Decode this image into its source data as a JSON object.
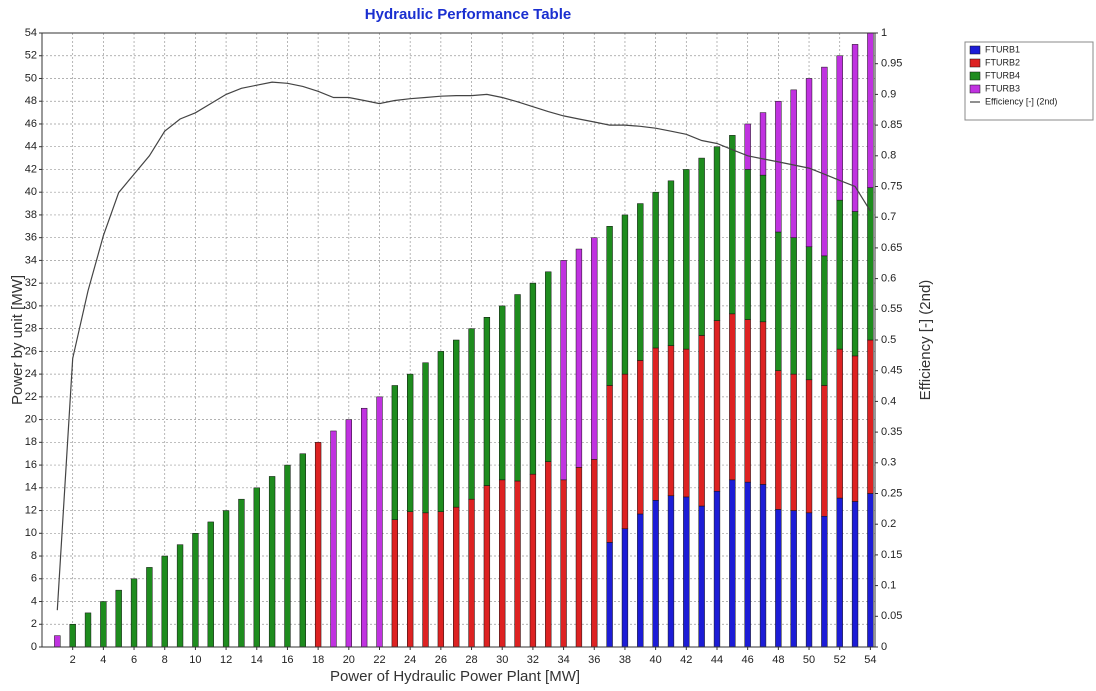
{
  "chart_data": {
    "type": "bar",
    "stacked": true,
    "title": "Hydraulic Performance Table",
    "xlabel": "Power of Hydraulic Power Plant [MW]",
    "ylabel": "Power by unit [MW]",
    "y2label": "Efficiency [-] (2nd)",
    "x": [
      1,
      2,
      3,
      4,
      5,
      6,
      7,
      8,
      9,
      10,
      11,
      12,
      13,
      14,
      15,
      16,
      17,
      18,
      19,
      20,
      21,
      22,
      23,
      24,
      25,
      26,
      27,
      28,
      29,
      30,
      31,
      32,
      33,
      34,
      35,
      36,
      37,
      38,
      39,
      40,
      41,
      42,
      43,
      44,
      45,
      46,
      47,
      48,
      49,
      50,
      51,
      52,
      53,
      54
    ],
    "xlim": [
      0,
      54.3
    ],
    "xticks": [
      2,
      4,
      6,
      8,
      10,
      12,
      14,
      16,
      18,
      20,
      22,
      24,
      26,
      28,
      30,
      32,
      34,
      36,
      38,
      40,
      42,
      44,
      46,
      48,
      50,
      52,
      54
    ],
    "ylim": [
      0,
      54
    ],
    "yticks": [
      0,
      2,
      4,
      6,
      8,
      10,
      12,
      14,
      16,
      18,
      20,
      22,
      24,
      26,
      28,
      30,
      32,
      34,
      36,
      38,
      40,
      42,
      44,
      46,
      48,
      50,
      52,
      54
    ],
    "y2lim": [
      0,
      1
    ],
    "y2ticks": [
      0,
      0.05,
      0.1,
      0.15,
      0.2,
      0.25,
      0.3,
      0.35,
      0.4,
      0.45,
      0.5,
      0.55,
      0.6,
      0.65,
      0.7,
      0.75,
      0.8,
      0.85,
      0.9,
      0.95,
      1
    ],
    "grid": true,
    "legend": "outside-top-right",
    "series": [
      {
        "name": "FTURB1",
        "color": "#1c1cd6",
        "values": [
          0,
          0,
          0,
          0,
          0,
          0,
          0,
          0,
          0,
          0,
          0,
          0,
          0,
          0,
          0,
          0,
          0,
          0,
          0,
          0,
          0,
          0,
          0,
          0,
          0,
          0,
          0,
          0,
          0,
          0,
          0,
          0,
          0,
          0,
          0,
          0,
          9.2,
          10.4,
          11.7,
          12.9,
          13.3,
          13.2,
          12.4,
          13.7,
          14.7,
          14.5,
          14.3,
          12.1,
          12,
          11.8,
          11.5,
          13.1,
          12.8,
          13.5
        ]
      },
      {
        "name": "FTURB2",
        "color": "#dd2222",
        "values": [
          0,
          0,
          0,
          0,
          0,
          0,
          0,
          0,
          0,
          0,
          0,
          0,
          0,
          0,
          0,
          0,
          0,
          18,
          0,
          0,
          0,
          0,
          11.2,
          11.9,
          11.8,
          11.9,
          12.3,
          13,
          14.2,
          14.7,
          14.6,
          15.2,
          16.3,
          14.7,
          15.8,
          16.5,
          13.8,
          13.6,
          13.5,
          13.4,
          13.2,
          13,
          15,
          15,
          14.6,
          14.3,
          14.3,
          12.2,
          12,
          11.7,
          11.5,
          13.1,
          12.8,
          13.5
        ]
      },
      {
        "name": "FTURB4",
        "color": "#1e8c1e",
        "values": [
          0,
          2,
          3,
          4,
          5,
          6,
          7,
          8,
          9,
          10,
          11,
          12,
          13,
          14,
          15,
          16,
          17,
          0,
          0,
          0,
          0,
          0,
          11.8,
          12.1,
          13.2,
          14.1,
          14.7,
          15,
          14.8,
          15.3,
          16.4,
          16.8,
          16.7,
          0,
          0,
          0,
          14,
          14,
          13.8,
          13.7,
          14.5,
          15.8,
          15.6,
          15.3,
          15.7,
          13.2,
          12.9,
          12.2,
          12,
          11.7,
          11.4,
          13.1,
          12.7,
          13.4
        ]
      },
      {
        "name": "FTURB3",
        "color": "#c032e0",
        "values": [
          1,
          0,
          0,
          0,
          0,
          0,
          0,
          0,
          0,
          0,
          0,
          0,
          0,
          0,
          0,
          0,
          0,
          0,
          19,
          20,
          21,
          22,
          0,
          0,
          0,
          0,
          0,
          0,
          0,
          0,
          0,
          0,
          0,
          19.3,
          19.2,
          19.5,
          0,
          0,
          0,
          0,
          0,
          0,
          0,
          0,
          0,
          4,
          5.5,
          11.5,
          13,
          14.8,
          16.6,
          12.7,
          14.7,
          13.6
        ]
      },
      {
        "name": "Efficiency [-] (2nd)",
        "type": "line",
        "axis": "y2",
        "color": "#444444",
        "values": [
          0.06,
          0.47,
          0.58,
          0.67,
          0.74,
          0.77,
          0.8,
          0.84,
          0.86,
          0.87,
          0.885,
          0.9,
          0.91,
          0.915,
          0.92,
          0.918,
          0.913,
          0.905,
          0.895,
          0.895,
          0.89,
          0.885,
          0.89,
          0.893,
          0.895,
          0.897,
          0.898,
          0.898,
          0.9,
          0.895,
          0.888,
          0.88,
          0.872,
          0.865,
          0.86,
          0.855,
          0.85,
          0.85,
          0.848,
          0.845,
          0.84,
          0.835,
          0.825,
          0.82,
          0.81,
          0.8,
          0.795,
          0.79,
          0.785,
          0.78,
          0.77,
          0.76,
          0.75,
          0.71
        ]
      }
    ]
  }
}
